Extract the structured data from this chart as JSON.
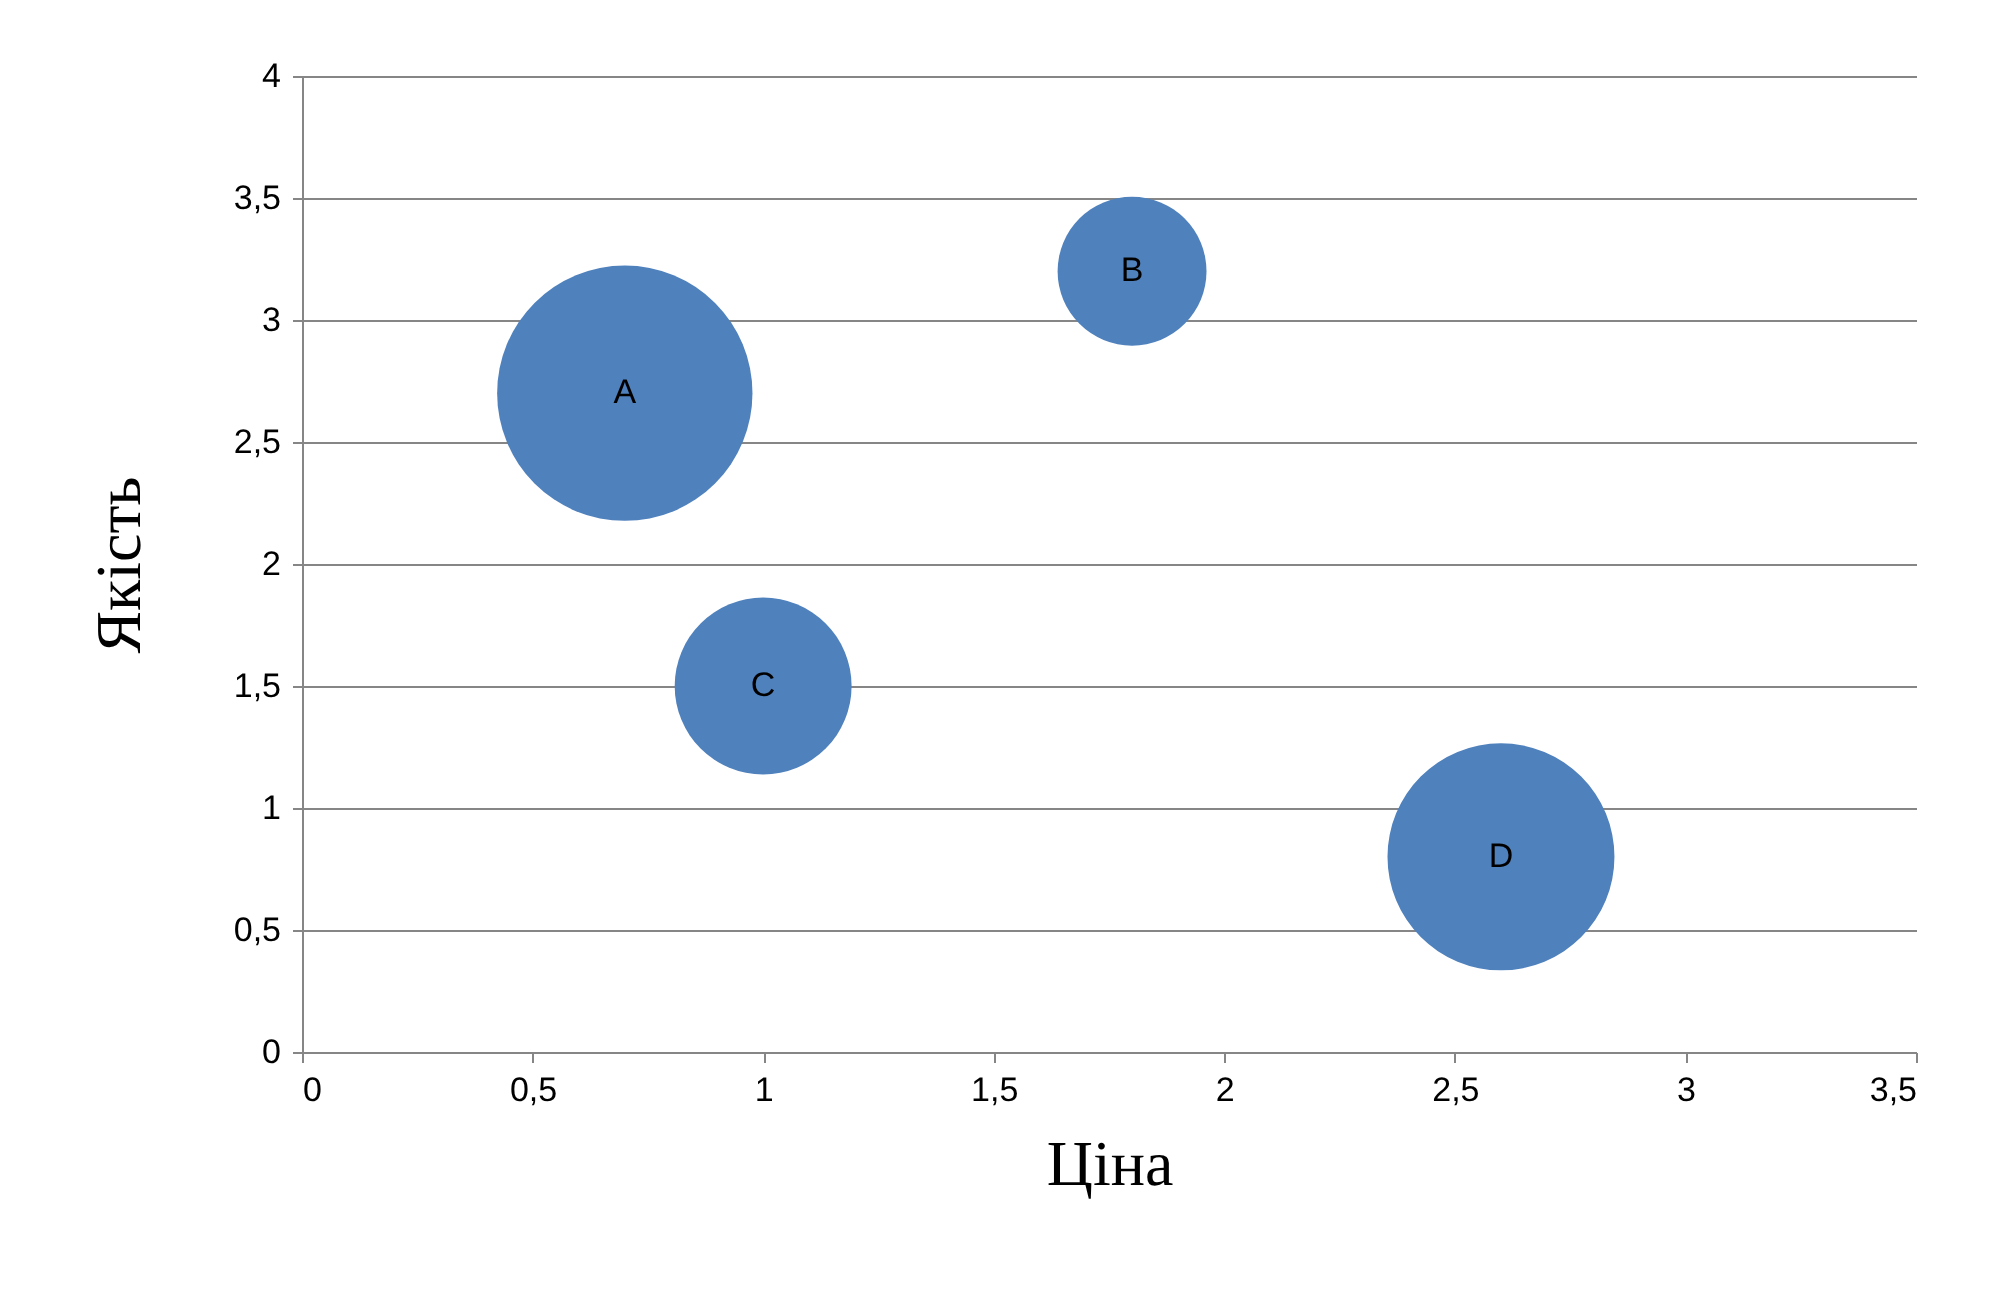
{
  "chart_data": {
    "type": "bubble",
    "xlabel": "Ціна",
    "ylabel": "Якість",
    "xlim": [
      0,
      3.5
    ],
    "xticks": [
      0,
      {
        "value": 0.5,
        "label": "0,5"
      },
      1,
      {
        "value": 1.5,
        "label": "1,5"
      },
      2,
      {
        "value": 2.5,
        "label": "2,5"
      },
      3,
      {
        "value": 3.5,
        "label": "3,5"
      }
    ],
    "ylim": [
      0,
      4
    ],
    "yticks": [
      0,
      {
        "value": 0.5,
        "label": "0,5"
      },
      1,
      {
        "value": 1.5,
        "label": "1,5"
      },
      2,
      {
        "value": 2.5,
        "label": "2,5"
      },
      3,
      {
        "value": 3.5,
        "label": "3,5"
      },
      4
    ],
    "grid": "y",
    "legend": false,
    "series": [
      {
        "name": "A",
        "color": "#4f81bd",
        "x": [
          0.7
        ],
        "values": [
          2.7
        ],
        "sizes": [
          1
        ]
      },
      {
        "name": "B",
        "color": "#4f81bd",
        "x": [
          1.8
        ],
        "values": [
          3.2
        ],
        "sizes": [
          0.34
        ]
      },
      {
        "name": "C",
        "color": "#4f81bd",
        "x": [
          1.0
        ],
        "values": [
          1.5
        ],
        "sizes": [
          0.48
        ]
      },
      {
        "name": "D",
        "color": "#4f81bd",
        "x": [
          2.6
        ],
        "values": [
          0.8
        ],
        "sizes": [
          0.79
        ]
      }
    ]
  }
}
